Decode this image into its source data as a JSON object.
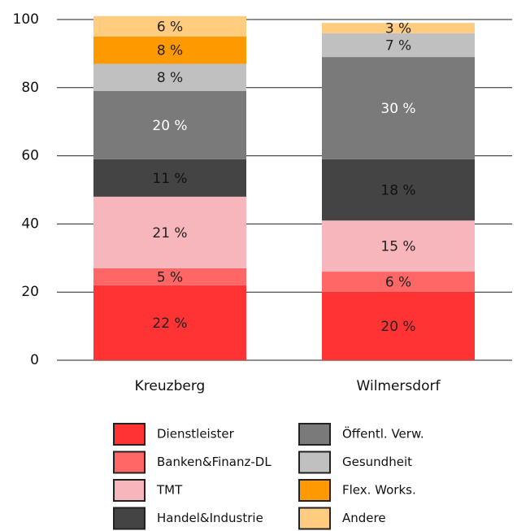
{
  "chart_data": {
    "type": "stacked_bar",
    "categories": [
      "Kreuzberg",
      "Wilmersdorf"
    ],
    "series": [
      {
        "name": "Dienstleister",
        "color": "#ff3333",
        "label_color": "#222222",
        "values": [
          22,
          20
        ],
        "value_labels": [
          "22 %",
          "20 %"
        ]
      },
      {
        "name": "Banken&Finanz-DL",
        "color": "#ff6666",
        "label_color": "#222222",
        "values": [
          5,
          6
        ],
        "value_labels": [
          "5 %",
          "6 %"
        ]
      },
      {
        "name": "TMT",
        "color": "#f7b6bb",
        "label_color": "#222222",
        "values": [
          21,
          15
        ],
        "value_labels": [
          "21 %",
          "15 %"
        ]
      },
      {
        "name": "Handel&Industrie",
        "color": "#444444",
        "label_color": "#111111",
        "values": [
          11,
          18
        ],
        "value_labels": [
          "11 %",
          "18 %"
        ]
      },
      {
        "name": "Öffentl. Verw.",
        "color": "#7a7a7a",
        "label_color": "#ffffff",
        "values": [
          20,
          30
        ],
        "value_labels": [
          "20 %",
          "30 %"
        ]
      },
      {
        "name": "Gesundheit",
        "color": "#c0c0c0",
        "label_color": "#222222",
        "values": [
          8,
          7
        ],
        "value_labels": [
          "8 %",
          "7 %"
        ]
      },
      {
        "name": "Flex. Works.",
        "color": "#ff9900",
        "label_color": "#222222",
        "values": [
          8,
          null
        ],
        "value_labels": [
          "8 %",
          null
        ]
      },
      {
        "name": "Andere",
        "color": "#ffcc80",
        "label_color": "#222222",
        "values": [
          6,
          3
        ],
        "value_labels": [
          "6 %",
          "3 %"
        ]
      }
    ],
    "ylim": [
      0,
      100
    ],
    "yticks": [
      0,
      20,
      40,
      60,
      80,
      100
    ],
    "grid": true,
    "legend": "bottom"
  }
}
